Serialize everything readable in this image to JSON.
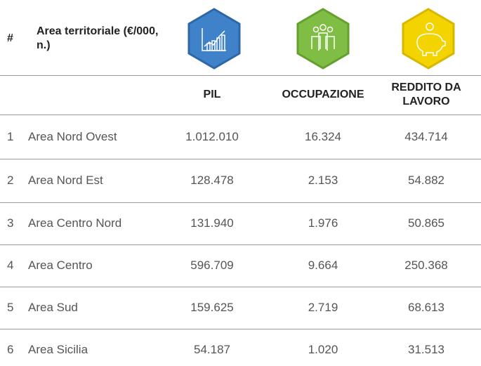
{
  "header": {
    "number_label": "#",
    "area_label": "Area territoriale (€/000, n.)"
  },
  "columns": [
    "PIL",
    "OCCUPAZIONE",
    "REDDITO DA LAVORO"
  ],
  "rows": [
    [
      "1",
      "Area Nord Ovest",
      "1.012.010",
      "16.324",
      "434.714"
    ],
    [
      "2",
      "Area Nord Est",
      "128.478",
      "2.153",
      "54.882"
    ],
    [
      "3",
      "Area Centro Nord",
      "131.940",
      "1.976",
      "50.865"
    ],
    [
      "4",
      "Area Centro",
      "596.709",
      "9.664",
      "250.368"
    ],
    [
      "5",
      "Area Sud",
      "159.625",
      "2.719",
      "68.613"
    ],
    [
      "6",
      "Area Sicilia",
      "54.187",
      "1.020",
      "31.513"
    ]
  ]
}
